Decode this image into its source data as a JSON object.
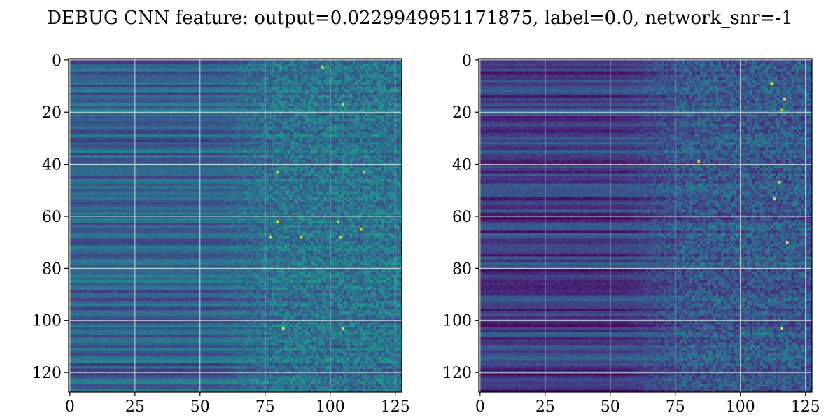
{
  "chart_data": {
    "title": "DEBUG CNN feature: output=0.0229949951171875, label=0.0, network_snr=-1",
    "panels": [
      {
        "type": "heatmap",
        "colormap": "viridis",
        "rows": 128,
        "cols": 128,
        "x_ticks": [
          "0",
          "25",
          "50",
          "75",
          "100",
          "125"
        ],
        "y_ticks": [
          "0",
          "20",
          "40",
          "60",
          "80",
          "100",
          "120"
        ],
        "xlim": [
          0,
          127
        ],
        "ylim": [
          127,
          0
        ],
        "grid": true,
        "value_range": [
          0,
          1
        ],
        "structure": "rows with horizontal banding for columns 0-70, increasingly noisy speckled values for columns 75-127",
        "bright_spots": [
          [
            3,
            97
          ],
          [
            17,
            105
          ],
          [
            43,
            80
          ],
          [
            43,
            113
          ],
          [
            62,
            80
          ],
          [
            62,
            103
          ],
          [
            65,
            112
          ],
          [
            68,
            77
          ],
          [
            68,
            89
          ],
          [
            68,
            104
          ],
          [
            103,
            82
          ],
          [
            103,
            105
          ]
        ]
      },
      {
        "type": "heatmap",
        "colormap": "viridis",
        "rows": 128,
        "cols": 128,
        "x_ticks": [
          "0",
          "25",
          "50",
          "75",
          "100",
          "125"
        ],
        "y_ticks": [
          "0",
          "20",
          "40",
          "60",
          "80",
          "100",
          "120"
        ],
        "xlim": [
          0,
          127
        ],
        "ylim": [
          127,
          0
        ],
        "grid": true,
        "value_range": [
          0,
          1
        ],
        "structure": "darker banded rows for columns 0-70, speckled noisy values for columns 75-127",
        "bright_spots": [
          [
            9,
            112
          ],
          [
            15,
            117
          ],
          [
            19,
            116
          ],
          [
            39,
            84
          ],
          [
            47,
            115
          ],
          [
            53,
            113
          ],
          [
            70,
            118
          ],
          [
            103,
            116
          ]
        ]
      }
    ]
  }
}
